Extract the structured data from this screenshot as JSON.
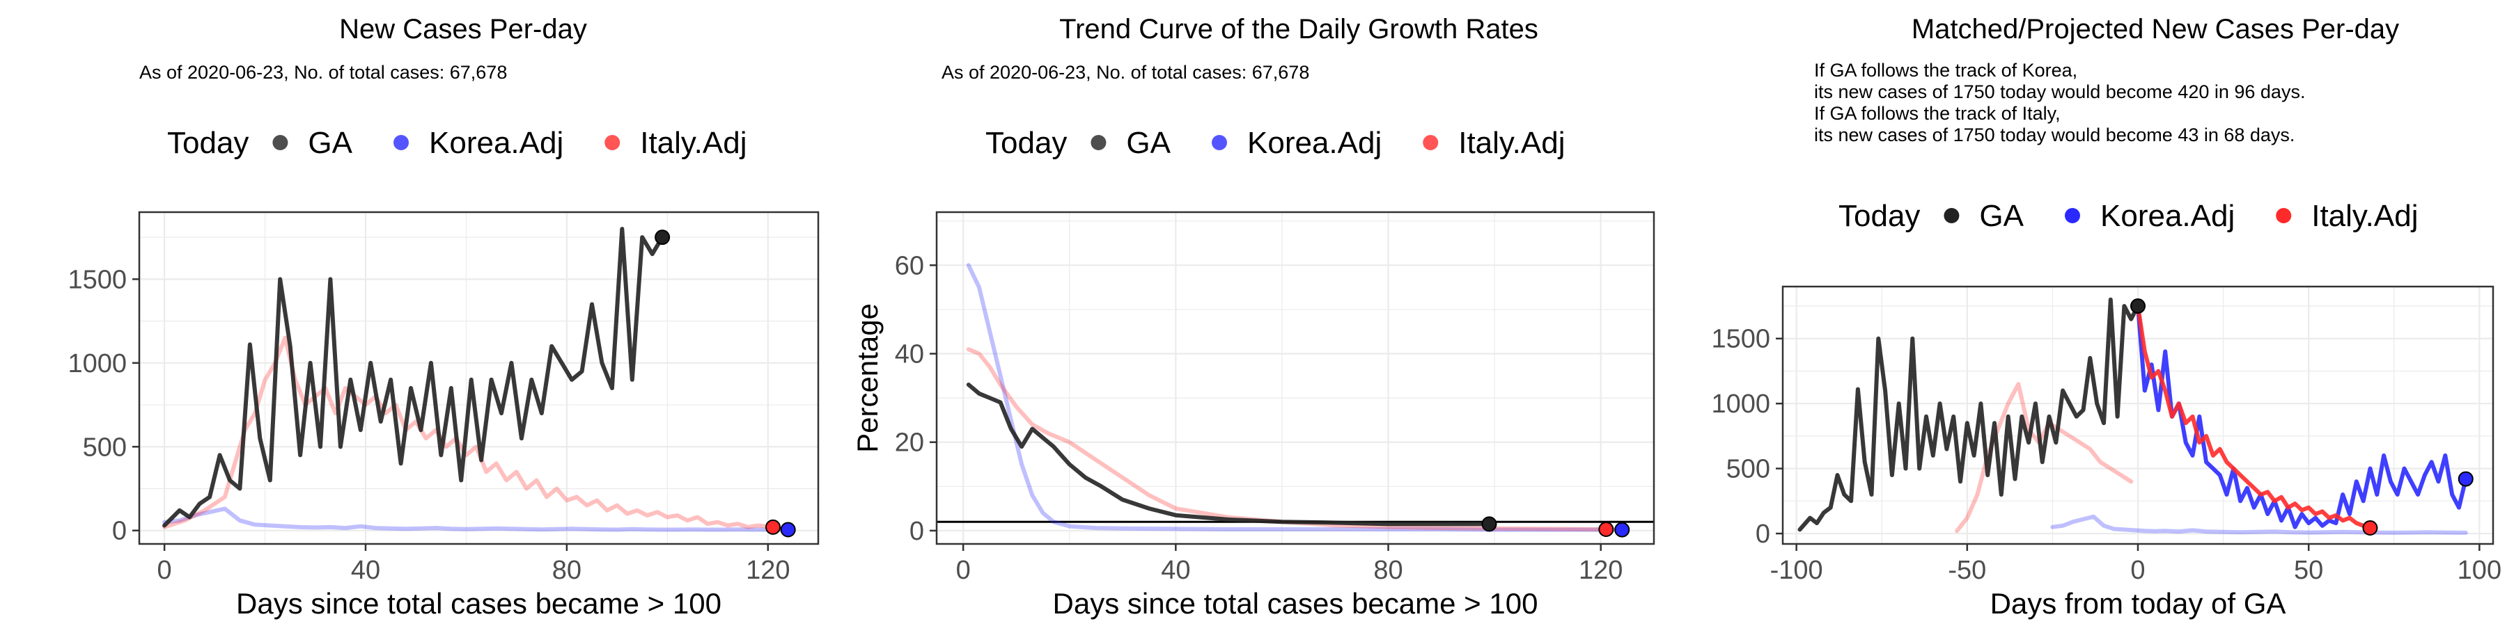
{
  "colors": {
    "GA": "#222222",
    "Korea.Adj": "#2a2aff",
    "Italy.Adj": "#ff2a2a",
    "grid": "#ebebeb",
    "panel_border": "#333333"
  },
  "chart_data": [
    {
      "type": "line",
      "title": "New Cases Per-day",
      "subtitle": [
        "As of 2020-06-23, No. of total cases: 67,678"
      ],
      "legend": {
        "title": "Today",
        "items": [
          "GA",
          "Korea.Adj",
          "Italy.Adj"
        ],
        "placement": "top"
      },
      "xlabel": "Days since total cases became > 100",
      "ylabel": "",
      "xlim": [
        -5,
        130
      ],
      "ylim": [
        -80,
        1900
      ],
      "xticks": [
        0,
        40,
        80,
        120
      ],
      "yticks": [
        0,
        500,
        1000,
        1500
      ],
      "grid": true,
      "series": [
        {
          "name": "GA",
          "opacity": 0.9,
          "x": [
            0,
            3,
            5,
            7,
            9,
            11,
            13,
            15,
            17,
            19,
            21,
            23,
            25,
            27,
            29,
            31,
            33,
            35,
            37,
            39,
            41,
            43,
            45,
            47,
            49,
            51,
            53,
            55,
            57,
            59,
            61,
            63,
            65,
            67,
            69,
            71,
            73,
            75,
            77,
            79,
            81,
            83,
            85,
            87,
            89,
            91,
            93,
            95,
            97,
            99
          ],
          "y": [
            30,
            120,
            80,
            160,
            200,
            450,
            300,
            250,
            1110,
            550,
            300,
            1500,
            1100,
            450,
            1000,
            500,
            1500,
            500,
            900,
            600,
            1000,
            650,
            900,
            400,
            850,
            600,
            1000,
            450,
            850,
            300,
            900,
            420,
            900,
            700,
            1000,
            550,
            900,
            700,
            1100,
            1000,
            900,
            950,
            1350,
            1000,
            850,
            1800,
            900,
            1750,
            1650,
            1750
          ]
        },
        {
          "name": "Korea.Adj",
          "opacity": 0.3,
          "x": [
            0,
            3,
            6,
            9,
            12,
            15,
            18,
            21,
            24,
            27,
            30,
            33,
            36,
            39,
            42,
            45,
            48,
            51,
            54,
            57,
            60,
            63,
            66,
            69,
            72,
            75,
            78,
            81,
            84,
            87,
            90,
            93,
            96,
            99,
            102,
            105,
            108,
            111,
            114,
            117,
            120,
            124
          ],
          "y": [
            50,
            60,
            90,
            110,
            130,
            60,
            35,
            30,
            25,
            20,
            18,
            20,
            15,
            25,
            15,
            12,
            10,
            12,
            15,
            10,
            8,
            10,
            12,
            10,
            8,
            6,
            8,
            10,
            8,
            6,
            5,
            8,
            6,
            5,
            5,
            6,
            5,
            5,
            6,
            5,
            5,
            5
          ]
        },
        {
          "name": "Italy.Adj",
          "opacity": 0.3,
          "x": [
            0,
            4,
            8,
            12,
            14,
            16,
            18,
            20,
            22,
            24,
            26,
            28,
            30,
            32,
            34,
            36,
            38,
            40,
            42,
            44,
            46,
            48,
            50,
            52,
            54,
            56,
            58,
            60,
            62,
            64,
            66,
            68,
            70,
            72,
            74,
            76,
            78,
            80,
            82,
            84,
            86,
            88,
            90,
            92,
            94,
            96,
            98,
            100,
            102,
            104,
            106,
            108,
            110,
            112,
            114,
            116,
            118,
            121
          ],
          "y": [
            20,
            60,
            120,
            200,
            400,
            600,
            700,
            900,
            1000,
            1150,
            900,
            750,
            800,
            850,
            700,
            850,
            800,
            750,
            800,
            700,
            750,
            600,
            650,
            550,
            600,
            500,
            550,
            450,
            500,
            350,
            400,
            300,
            350,
            250,
            300,
            200,
            250,
            180,
            200,
            150,
            180,
            120,
            150,
            100,
            120,
            90,
            110,
            80,
            90,
            60,
            80,
            40,
            50,
            30,
            40,
            20,
            30,
            20
          ]
        }
      ],
      "today": [
        {
          "series": "GA",
          "x": 99,
          "y": 1750
        },
        {
          "series": "Korea.Adj",
          "x": 124,
          "y": 5
        },
        {
          "series": "Italy.Adj",
          "x": 121,
          "y": 20
        }
      ]
    },
    {
      "type": "line",
      "title": "Trend Curve of the Daily Growth Rates",
      "subtitle": [
        "As of 2020-06-23, No. of total cases: 67,678"
      ],
      "legend": {
        "title": "Today",
        "items": [
          "GA",
          "Korea.Adj",
          "Italy.Adj"
        ],
        "placement": "top"
      },
      "xlabel": "Days since total cases became > 100",
      "ylabel": "Percentage",
      "xlim": [
        -5,
        130
      ],
      "ylim": [
        -3,
        72
      ],
      "xticks": [
        0,
        40,
        80,
        120
      ],
      "yticks": [
        0,
        20,
        40,
        60
      ],
      "grid": true,
      "hline": 2.0,
      "series": [
        {
          "name": "GA",
          "opacity": 0.9,
          "x": [
            1,
            3,
            5,
            7,
            9,
            11,
            13,
            15,
            17,
            20,
            23,
            26,
            30,
            35,
            40,
            50,
            60,
            70,
            80,
            90,
            99
          ],
          "y": [
            33,
            31,
            30,
            29,
            23,
            19,
            23,
            21,
            19,
            15,
            12,
            10,
            7,
            5,
            3.5,
            2.5,
            2.0,
            1.8,
            1.5,
            1.5,
            1.5
          ]
        },
        {
          "name": "Korea.Adj",
          "opacity": 0.3,
          "x": [
            1,
            3,
            5,
            7,
            9,
            11,
            13,
            15,
            17,
            20,
            25,
            30,
            40,
            50,
            60,
            70,
            80,
            90,
            100,
            110,
            124
          ],
          "y": [
            60,
            55,
            45,
            35,
            25,
            15,
            8,
            4,
            2,
            1,
            0.6,
            0.5,
            0.4,
            0.3,
            0.3,
            0.3,
            0.3,
            0.3,
            0.2,
            0.2,
            0.2
          ]
        },
        {
          "name": "Italy.Adj",
          "opacity": 0.3,
          "x": [
            1,
            3,
            5,
            7,
            10,
            13,
            16,
            20,
            25,
            30,
            35,
            40,
            50,
            60,
            70,
            80,
            90,
            100,
            110,
            121
          ],
          "y": [
            41,
            40,
            37,
            33,
            28,
            24,
            22,
            20,
            16,
            12,
            8,
            5,
            3,
            2,
            1.2,
            0.8,
            0.6,
            0.5,
            0.4,
            0.3
          ]
        }
      ],
      "today": [
        {
          "series": "GA",
          "x": 99,
          "y": 1.5
        },
        {
          "series": "Korea.Adj",
          "x": 124,
          "y": 0.2
        },
        {
          "series": "Italy.Adj",
          "x": 121,
          "y": 0.3
        }
      ]
    },
    {
      "type": "line",
      "title": "Matched/Projected New Cases Per-day",
      "subtitle": [
        "If GA follows the track of Korea,",
        "its new cases of 1750 today would become 420 in 96 days.",
        "If GA follows the track of Italy,",
        "its new cases of 1750 today would become 43 in 68 days."
      ],
      "legend": {
        "title": "Today",
        "items": [
          "GA",
          "Korea.Adj",
          "Italy.Adj"
        ],
        "placement": "top"
      },
      "xlabel": "Days from today of GA",
      "ylabel": "",
      "xlim": [
        -104,
        104
      ],
      "ylim": [
        -80,
        1900
      ],
      "xticks": [
        -100,
        -50,
        0,
        50,
        100
      ],
      "yticks": [
        0,
        500,
        1000,
        1500
      ],
      "grid": true,
      "series": [
        {
          "name": "GA",
          "opacity": 0.9,
          "x": [
            -99,
            -96,
            -94,
            -92,
            -90,
            -88,
            -86,
            -84,
            -82,
            -80,
            -78,
            -76,
            -74,
            -72,
            -70,
            -68,
            -66,
            -64,
            -62,
            -60,
            -58,
            -56,
            -54,
            -52,
            -50,
            -48,
            -46,
            -44,
            -42,
            -40,
            -38,
            -36,
            -34,
            -32,
            -30,
            -28,
            -26,
            -24,
            -22,
            -20,
            -18,
            -16,
            -14,
            -12,
            -10,
            -8,
            -6,
            -4,
            -2,
            0
          ],
          "y": [
            30,
            120,
            80,
            160,
            200,
            450,
            300,
            250,
            1110,
            550,
            300,
            1500,
            1100,
            450,
            1000,
            500,
            1500,
            500,
            900,
            600,
            1000,
            650,
            900,
            400,
            850,
            600,
            1000,
            450,
            850,
            300,
            900,
            420,
            900,
            700,
            1000,
            550,
            900,
            700,
            1100,
            1000,
            900,
            950,
            1350,
            1000,
            850,
            1800,
            900,
            1750,
            1650,
            1750
          ]
        },
        {
          "name": "Korea.Adj",
          "opacity": 0.3,
          "x": [
            -25,
            -22,
            -19,
            -16,
            -13,
            -10,
            -7,
            -4,
            -1,
            2,
            5,
            8,
            12,
            16,
            20,
            25,
            30,
            35,
            40,
            45,
            50,
            55,
            60,
            65,
            70,
            75,
            80,
            85,
            90,
            96
          ],
          "y": [
            50,
            60,
            90,
            110,
            130,
            60,
            35,
            30,
            25,
            20,
            18,
            20,
            15,
            25,
            15,
            12,
            10,
            12,
            15,
            10,
            8,
            10,
            12,
            10,
            8,
            6,
            8,
            10,
            8,
            6
          ]
        },
        {
          "name": "Italy.Adj",
          "opacity": 0.3,
          "x": [
            -53,
            -50,
            -47,
            -44,
            -41,
            -38,
            -35,
            -32,
            -29,
            -26,
            -23,
            -20,
            -17,
            -14,
            -11,
            -8,
            -5,
            -2
          ],
          "y": [
            20,
            120,
            300,
            600,
            800,
            1000,
            1150,
            800,
            700,
            850,
            800,
            750,
            700,
            650,
            550,
            500,
            450,
            400
          ]
        },
        {
          "name": "Korea.Adj",
          "opacity": 0.9,
          "x": [
            0,
            2,
            4,
            6,
            8,
            10,
            12,
            14,
            16,
            18,
            20,
            22,
            24,
            26,
            28,
            30,
            32,
            34,
            36,
            38,
            40,
            42,
            44,
            46,
            48,
            50,
            52,
            54,
            56,
            58,
            60,
            62,
            64,
            66,
            68,
            70,
            72,
            74,
            76,
            78,
            80,
            82,
            84,
            86,
            88,
            90,
            92,
            94,
            96
          ],
          "y": [
            1750,
            1100,
            1300,
            950,
            1400,
            900,
            1000,
            700,
            600,
            900,
            550,
            500,
            450,
            300,
            500,
            250,
            350,
            200,
            300,
            150,
            250,
            100,
            200,
            50,
            150,
            80,
            120,
            60,
            100,
            80,
            300,
            150,
            400,
            250,
            500,
            300,
            600,
            400,
            300,
            500,
            400,
            300,
            450,
            550,
            400,
            600,
            300,
            200,
            420
          ]
        },
        {
          "name": "Italy.Adj",
          "opacity": 0.9,
          "x": [
            0,
            2,
            4,
            6,
            8,
            10,
            12,
            14,
            16,
            18,
            20,
            22,
            24,
            26,
            28,
            30,
            32,
            34,
            36,
            38,
            40,
            42,
            44,
            46,
            48,
            50,
            52,
            54,
            56,
            58,
            60,
            62,
            64,
            66,
            68
          ],
          "y": [
            1750,
            1400,
            1200,
            1250,
            1100,
            900,
            1000,
            850,
            900,
            700,
            750,
            600,
            650,
            550,
            500,
            450,
            400,
            350,
            300,
            320,
            250,
            280,
            200,
            230,
            180,
            200,
            150,
            170,
            120,
            140,
            100,
            120,
            80,
            60,
            43
          ]
        }
      ],
      "today": [
        {
          "series": "GA",
          "x": 0,
          "y": 1750
        },
        {
          "series": "Korea.Adj",
          "x": 96,
          "y": 420
        },
        {
          "series": "Italy.Adj",
          "x": 68,
          "y": 43
        }
      ]
    }
  ]
}
